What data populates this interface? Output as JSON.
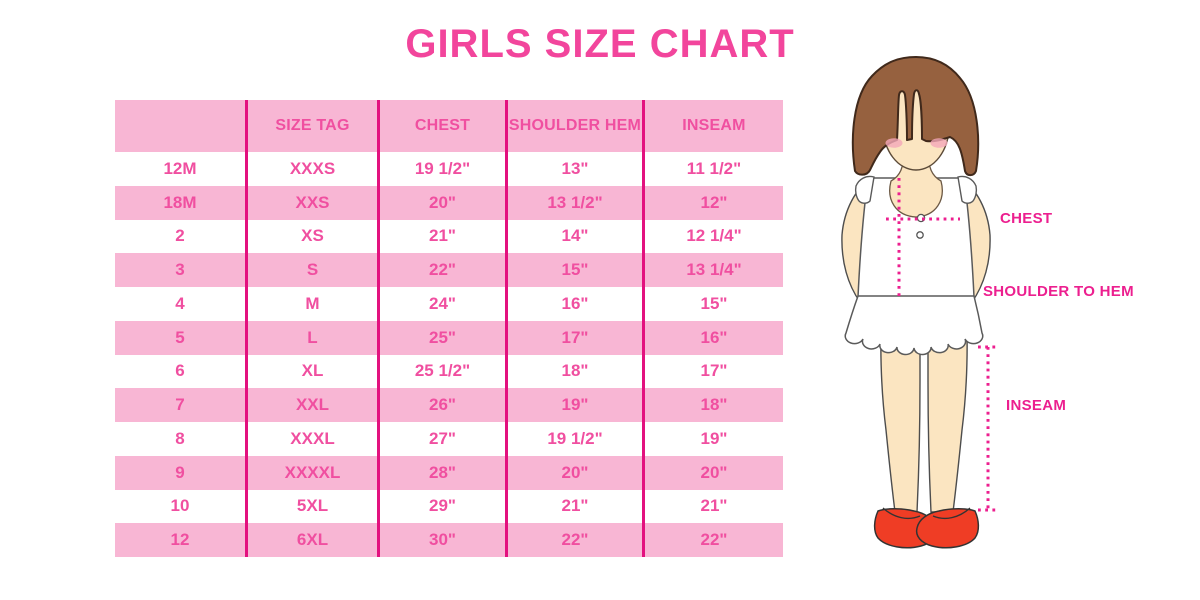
{
  "title": "GIRLS SIZE CHART",
  "table": {
    "columns": [
      "",
      "SIZE TAG",
      "CHEST",
      "SHOULDER HEM",
      "INSEAM"
    ],
    "rows": [
      [
        "12M",
        "XXXS",
        "19 1/2\"",
        "13\"",
        "11 1/2\""
      ],
      [
        "18M",
        "XXS",
        "20\"",
        "13 1/2\"",
        "12\""
      ],
      [
        "2",
        "XS",
        "21\"",
        "14\"",
        "12 1/4\""
      ],
      [
        "3",
        "S",
        "22\"",
        "15\"",
        "13 1/4\""
      ],
      [
        "4",
        "M",
        "24\"",
        "16\"",
        "15\""
      ],
      [
        "5",
        "L",
        "25\"",
        "17\"",
        "16\""
      ],
      [
        "6",
        "XL",
        "25 1/2\"",
        "18\"",
        "17\""
      ],
      [
        "7",
        "XXL",
        "26\"",
        "19\"",
        "18\""
      ],
      [
        "8",
        "XXXL",
        "27\"",
        "19 1/2\"",
        "19\""
      ],
      [
        "9",
        "XXXXL",
        "28\"",
        "20\"",
        "20\""
      ],
      [
        "10",
        "5XL",
        "29\"",
        "21\"",
        "21\""
      ],
      [
        "12",
        "6XL",
        "30\"",
        "22\"",
        "22\""
      ]
    ]
  },
  "figure": {
    "labels": {
      "chest": "CHEST",
      "shoulder_to_hem": "SHOULDER TO HEM",
      "inseam": "INSEAM"
    }
  },
  "colors": {
    "title_pink": "#F2459C",
    "row_pink": "#F8B6D4",
    "divider_pink": "#E3117F",
    "cell_text_pink": "#F04FA0",
    "measure_pink": "#EC1F8F",
    "hair_brown": "#96613F",
    "skin": "#FBE5C1",
    "blush": "#F4A7B9",
    "shoe_red": "#EF3D25"
  }
}
